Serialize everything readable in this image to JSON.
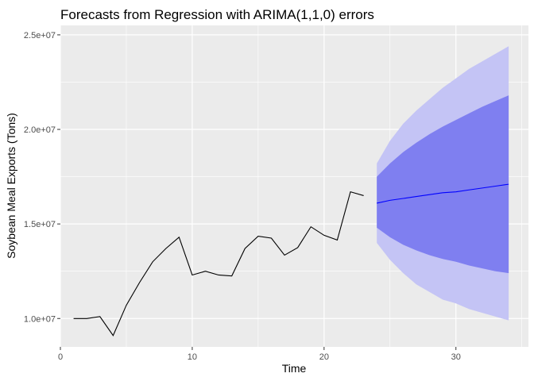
{
  "chart_data": {
    "type": "line",
    "title": "Forecasts from Regression with ARIMA(1,1,0) errors",
    "xlabel": "Time",
    "ylabel": "Soybean Meal Exports (Tons)",
    "xlim": [
      0,
      35.5
    ],
    "ylim": [
      8500000,
      25500000
    ],
    "x_ticks": [
      0,
      10,
      20,
      30
    ],
    "x_tick_labels": [
      "0",
      "10",
      "20",
      "30"
    ],
    "y_ticks": [
      10000000,
      15000000,
      20000000,
      25000000
    ],
    "y_tick_labels": [
      "1.0e+07",
      "1.5e+07",
      "2.0e+07",
      "2.5e+07"
    ],
    "grid": true,
    "colors": {
      "panel_background": "#ebebeb",
      "grid": "#ffffff",
      "history_line": "#000000",
      "forecast_line": "#0000ff",
      "band_80": "#7f7ff0",
      "band_95": "#c4c4f5"
    },
    "history": {
      "x": [
        1,
        2,
        3,
        4,
        5,
        6,
        7,
        8,
        9,
        10,
        11,
        12,
        13,
        14,
        15,
        16,
        17,
        18,
        19,
        20,
        21,
        22,
        23
      ],
      "y": [
        10000000,
        10000000,
        10100000,
        9100000,
        10700000,
        11900000,
        13000000,
        13700000,
        14300000,
        12300000,
        12500000,
        12300000,
        12250000,
        13700000,
        14350000,
        14250000,
        13350000,
        13750000,
        14850000,
        14400000,
        14150000,
        16700000,
        16500000
      ]
    },
    "forecast": {
      "x": [
        24,
        25,
        26,
        27,
        28,
        29,
        30,
        31,
        32,
        33,
        34
      ],
      "mean": [
        16100000,
        16250000,
        16350000,
        16450000,
        16550000,
        16650000,
        16700000,
        16800000,
        16900000,
        17000000,
        17100000
      ],
      "lo80": [
        14800000,
        14300000,
        13900000,
        13600000,
        13350000,
        13150000,
        13000000,
        12800000,
        12650000,
        12500000,
        12400000
      ],
      "hi80": [
        17500000,
        18200000,
        18800000,
        19300000,
        19750000,
        20150000,
        20500000,
        20850000,
        21200000,
        21500000,
        21800000
      ],
      "lo95": [
        14000000,
        13100000,
        12400000,
        11800000,
        11400000,
        11000000,
        10800000,
        10500000,
        10300000,
        10100000,
        9900000
      ],
      "hi95": [
        18200000,
        19400000,
        20300000,
        21000000,
        21600000,
        22200000,
        22700000,
        23200000,
        23600000,
        24000000,
        24400000
      ]
    }
  }
}
